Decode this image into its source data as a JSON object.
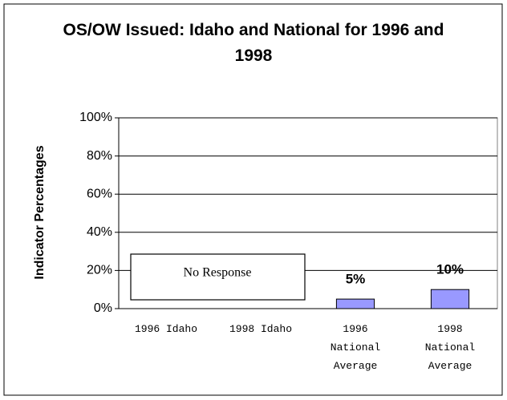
{
  "chart_data": {
    "type": "bar",
    "title": "OS/OW Issued: Idaho and National for 1996 and 1998",
    "ylabel": "Indicator Percentages",
    "categories": [
      "1996 Idaho",
      "1998 Idaho",
      "1996 National Average",
      "1998 National Average"
    ],
    "values": [
      null,
      null,
      5,
      10
    ],
    "value_labels": [
      null,
      null,
      "5%",
      "10%"
    ],
    "color": "#9999ff",
    "annotation": "No Response",
    "ylim": [
      0,
      100
    ],
    "yticks": [
      {
        "value": 0,
        "label": "0%"
      },
      {
        "value": 20,
        "label": "20%"
      },
      {
        "value": 40,
        "label": "40%"
      },
      {
        "value": 60,
        "label": "60%"
      },
      {
        "value": 80,
        "label": "80%"
      },
      {
        "value": 100,
        "label": "100%"
      }
    ],
    "grid": true
  }
}
